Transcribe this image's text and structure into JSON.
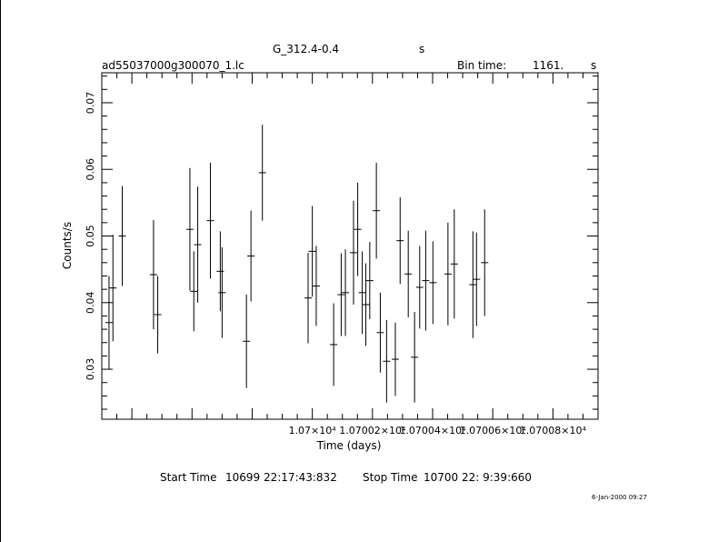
{
  "header": {
    "object": "G_312.4-0.4",
    "unit_suffix": "s",
    "filename": "ad55037000g300070_1.lc",
    "bin_label": "Bin time:",
    "bin_value": "1161.",
    "bin_unit": "s"
  },
  "footer": {
    "start_label": "Start Time",
    "start_value": "10699 22:17:43:832",
    "stop_label": "Stop Time",
    "stop_value": "10700 22: 9:39:660",
    "date_stamp": "6-Jan-2000 09:27"
  },
  "chart_data": {
    "type": "scatter",
    "title": "G_312.4-0.4",
    "xlabel": "Time (days)",
    "ylabel": "Counts/s",
    "xlim": [
      10699.93,
      10700.095
    ],
    "ylim": [
      0.0225,
      0.0745
    ],
    "grid": false,
    "x_ticks": [
      {
        "value": 10700.0,
        "label": "1.07×10⁴"
      },
      {
        "value": 10700.02,
        "label": "1.07002×10⁴"
      },
      {
        "value": 10700.04,
        "label": "1.07004×10⁴"
      },
      {
        "value": 10700.06,
        "label": "1.07006×10⁴"
      },
      {
        "value": 10700.08,
        "label": "1.07008×10⁴"
      }
    ],
    "y_ticks": [
      {
        "value": 0.03,
        "label": "0.03"
      },
      {
        "value": 0.04,
        "label": "0.04"
      },
      {
        "value": 0.05,
        "label": "0.05"
      },
      {
        "value": 0.06,
        "label": "0.06"
      },
      {
        "value": 0.07,
        "label": "0.07"
      }
    ],
    "points": [
      {
        "x": 10699.9324,
        "y": 0.037,
        "err": 0.007
      },
      {
        "x": 10699.9337,
        "y": 0.0422,
        "err": 0.008
      },
      {
        "x": 10699.9368,
        "y": 0.05,
        "err": 0.0075
      },
      {
        "x": 10699.9472,
        "y": 0.0442,
        "err": 0.0082
      },
      {
        "x": 10699.9486,
        "y": 0.0382,
        "err": 0.0058
      },
      {
        "x": 10699.9593,
        "y": 0.051,
        "err": 0.0092
      },
      {
        "x": 10699.9606,
        "y": 0.0417,
        "err": 0.006
      },
      {
        "x": 10699.9619,
        "y": 0.0487,
        "err": 0.0087
      },
      {
        "x": 10699.9661,
        "y": 0.0523,
        "err": 0.0087
      },
      {
        "x": 10699.9694,
        "y": 0.0447,
        "err": 0.006
      },
      {
        "x": 10699.97,
        "y": 0.0415,
        "err": 0.0068
      },
      {
        "x": 10699.9781,
        "y": 0.0342,
        "err": 0.007
      },
      {
        "x": 10699.9796,
        "y": 0.047,
        "err": 0.0068
      },
      {
        "x": 10699.9834,
        "y": 0.0595,
        "err": 0.0072
      },
      {
        "x": 10699.9986,
        "y": 0.0407,
        "err": 0.0068
      },
      {
        "x": 10700.0,
        "y": 0.0477,
        "err": 0.0068
      },
      {
        "x": 10700.0013,
        "y": 0.0425,
        "err": 0.006
      },
      {
        "x": 10700.0071,
        "y": 0.0337,
        "err": 0.0062
      },
      {
        "x": 10700.0096,
        "y": 0.0412,
        "err": 0.0062
      },
      {
        "x": 10700.011,
        "y": 0.0415,
        "err": 0.0065
      },
      {
        "x": 10700.0137,
        "y": 0.0475,
        "err": 0.0078
      },
      {
        "x": 10700.0151,
        "y": 0.051,
        "err": 0.007
      },
      {
        "x": 10700.0166,
        "y": 0.0415,
        "err": 0.0062
      },
      {
        "x": 10700.0178,
        "y": 0.0397,
        "err": 0.0062
      },
      {
        "x": 10700.0191,
        "y": 0.0433,
        "err": 0.0058
      },
      {
        "x": 10700.0213,
        "y": 0.0538,
        "err": 0.0072
      },
      {
        "x": 10700.0226,
        "y": 0.0355,
        "err": 0.006
      },
      {
        "x": 10700.0247,
        "y": 0.0312,
        "err": 0.0062
      },
      {
        "x": 10700.0276,
        "y": 0.0315,
        "err": 0.0055
      },
      {
        "x": 10700.0292,
        "y": 0.0493,
        "err": 0.0065
      },
      {
        "x": 10700.0319,
        "y": 0.0443,
        "err": 0.0065
      },
      {
        "x": 10700.034,
        "y": 0.0318,
        "err": 0.0068
      },
      {
        "x": 10700.0357,
        "y": 0.0423,
        "err": 0.0062
      },
      {
        "x": 10700.0377,
        "y": 0.0433,
        "err": 0.0075
      },
      {
        "x": 10700.0401,
        "y": 0.043,
        "err": 0.0062
      },
      {
        "x": 10700.0451,
        "y": 0.0443,
        "err": 0.0077
      },
      {
        "x": 10700.0472,
        "y": 0.0458,
        "err": 0.0082
      },
      {
        "x": 10700.0534,
        "y": 0.0427,
        "err": 0.008
      },
      {
        "x": 10700.0546,
        "y": 0.0435,
        "err": 0.007
      },
      {
        "x": 10700.0573,
        "y": 0.046,
        "err": 0.008
      }
    ]
  }
}
